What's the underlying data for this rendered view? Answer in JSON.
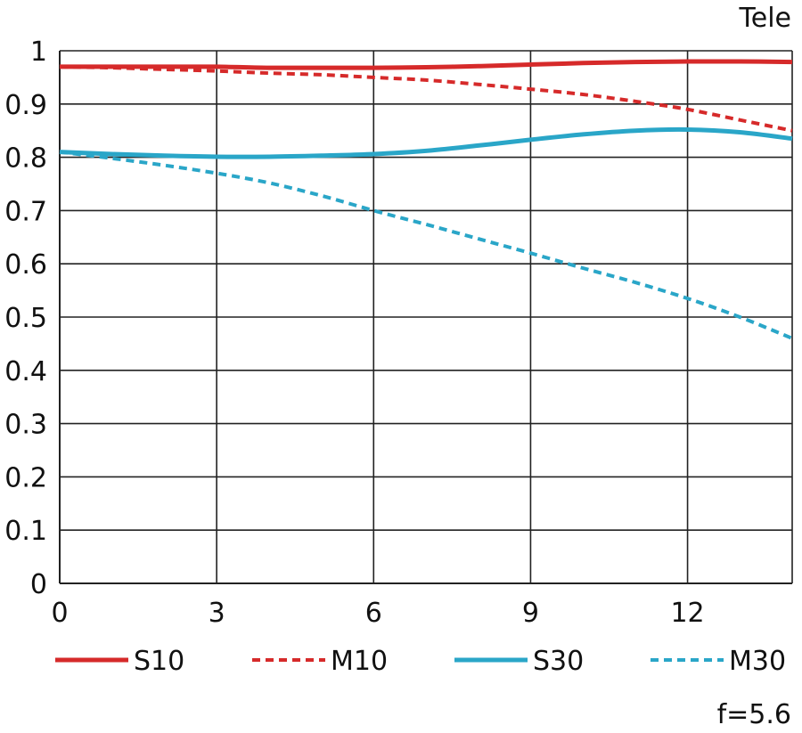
{
  "chart_data": {
    "type": "line",
    "title": "Tele",
    "footnote": "f=5.6",
    "xlabel": "",
    "ylabel": "",
    "xlim": [
      0,
      14
    ],
    "ylim": [
      0,
      1
    ],
    "x_ticks": [
      0,
      3,
      6,
      9,
      12
    ],
    "x_tick_labels": [
      "0",
      "3",
      "6",
      "9",
      "12"
    ],
    "y_ticks": [
      0,
      0.1,
      0.2,
      0.3,
      0.4,
      0.5,
      0.6,
      0.7,
      0.8,
      0.9,
      1
    ],
    "y_tick_labels": [
      "0",
      "0.1",
      "0.2",
      "0.3",
      "0.4",
      "0.5",
      "0.6",
      "0.7",
      "0.8",
      "0.9",
      "1"
    ],
    "grid": true,
    "legend_position": "bottom",
    "series": [
      {
        "name": "S10",
        "color": "#d62a2a",
        "style": "solid",
        "x": [
          0,
          1,
          2,
          3,
          4,
          5,
          6,
          7,
          8,
          9,
          10,
          11,
          12,
          13,
          14
        ],
        "y": [
          0.97,
          0.97,
          0.97,
          0.97,
          0.968,
          0.968,
          0.968,
          0.969,
          0.971,
          0.974,
          0.977,
          0.979,
          0.98,
          0.98,
          0.979
        ]
      },
      {
        "name": "M10",
        "color": "#d62a2a",
        "style": "dashed",
        "x": [
          0,
          1,
          2,
          3,
          4,
          5,
          6,
          7,
          8,
          9,
          10,
          11,
          12,
          13,
          14
        ],
        "y": [
          0.97,
          0.968,
          0.965,
          0.962,
          0.958,
          0.955,
          0.95,
          0.945,
          0.937,
          0.928,
          0.918,
          0.905,
          0.89,
          0.87,
          0.85
        ]
      },
      {
        "name": "S30",
        "color": "#2aa6c8",
        "style": "solid",
        "x": [
          0,
          1,
          2,
          3,
          4,
          5,
          6,
          7,
          8,
          9,
          10,
          11,
          12,
          13,
          14
        ],
        "y": [
          0.81,
          0.806,
          0.803,
          0.801,
          0.801,
          0.803,
          0.806,
          0.812,
          0.822,
          0.833,
          0.843,
          0.85,
          0.852,
          0.847,
          0.835
        ]
      },
      {
        "name": "M30",
        "color": "#2aa6c8",
        "style": "dashed",
        "x": [
          0,
          1,
          2,
          3,
          4,
          5,
          6,
          7,
          8,
          9,
          10,
          11,
          12,
          13,
          14
        ],
        "y": [
          0.81,
          0.798,
          0.785,
          0.77,
          0.752,
          0.728,
          0.7,
          0.674,
          0.647,
          0.62,
          0.592,
          0.565,
          0.535,
          0.5,
          0.46
        ]
      }
    ]
  }
}
